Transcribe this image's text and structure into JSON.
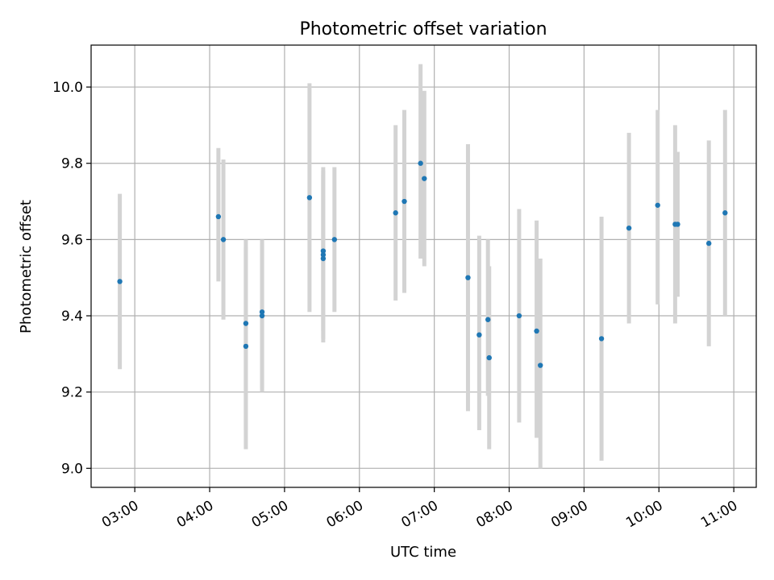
{
  "chart_data": {
    "type": "scatter",
    "title": "Photometric offset variation",
    "xlabel": "UTC time",
    "ylabel": "Photometric offset",
    "x_tick_labels": [
      "03:00",
      "04:00",
      "05:00",
      "06:00",
      "07:00",
      "08:00",
      "09:00",
      "10:00",
      "11:00"
    ],
    "y_tick_labels": [
      "9.0",
      "9.2",
      "9.4",
      "9.6",
      "9.8",
      "10.0"
    ],
    "xlim": [
      "02:25",
      "11:18"
    ],
    "ylim": [
      8.95,
      10.11
    ],
    "grid": true,
    "colors": {
      "points": "#1f77b4",
      "error_bars": "#d3d3d3",
      "grid": "#b0b0b0"
    },
    "series": [
      {
        "error_bars": "vertical",
        "points": [
          {
            "x": "02:48",
            "y": 9.49,
            "err_low": 9.26,
            "err_high": 9.72
          },
          {
            "x": "04:07",
            "y": 9.66,
            "err_low": 9.49,
            "err_high": 9.84
          },
          {
            "x": "04:11",
            "y": 9.6,
            "err_low": 9.39,
            "err_high": 9.81
          },
          {
            "x": "04:29",
            "y": 9.38,
            "err_low": 9.1,
            "err_high": 9.6
          },
          {
            "x": "04:29",
            "y": 9.32,
            "err_low": 9.05,
            "err_high": 9.58
          },
          {
            "x": "04:42",
            "y": 9.41,
            "err_low": 9.21,
            "err_high": 9.6
          },
          {
            "x": "04:42",
            "y": 9.4,
            "err_low": 9.2,
            "err_high": 9.59
          },
          {
            "x": "05:20",
            "y": 9.71,
            "err_low": 9.41,
            "err_high": 10.01
          },
          {
            "x": "05:31",
            "y": 9.57,
            "err_low": 9.36,
            "err_high": 9.79
          },
          {
            "x": "05:31",
            "y": 9.56,
            "err_low": 9.34,
            "err_high": 9.78
          },
          {
            "x": "05:31",
            "y": 9.55,
            "err_low": 9.33,
            "err_high": 9.77
          },
          {
            "x": "05:40",
            "y": 9.6,
            "err_low": 9.41,
            "err_high": 9.79
          },
          {
            "x": "06:29",
            "y": 9.67,
            "err_low": 9.44,
            "err_high": 9.9
          },
          {
            "x": "06:36",
            "y": 9.7,
            "err_low": 9.46,
            "err_high": 9.94
          },
          {
            "x": "06:49",
            "y": 9.8,
            "err_low": 9.55,
            "err_high": 10.06
          },
          {
            "x": "06:52",
            "y": 9.76,
            "err_low": 9.53,
            "err_high": 9.99
          },
          {
            "x": "07:27",
            "y": 9.5,
            "err_low": 9.15,
            "err_high": 9.85
          },
          {
            "x": "07:36",
            "y": 9.35,
            "err_low": 9.1,
            "err_high": 9.61
          },
          {
            "x": "07:43",
            "y": 9.39,
            "err_low": 9.19,
            "err_high": 9.6
          },
          {
            "x": "07:44",
            "y": 9.29,
            "err_low": 9.05,
            "err_high": 9.53
          },
          {
            "x": "08:08",
            "y": 9.4,
            "err_low": 9.12,
            "err_high": 9.68
          },
          {
            "x": "08:22",
            "y": 9.36,
            "err_low": 9.08,
            "err_high": 9.65
          },
          {
            "x": "08:25",
            "y": 9.27,
            "err_low": 9.0,
            "err_high": 9.55
          },
          {
            "x": "09:14",
            "y": 9.34,
            "err_low": 9.02,
            "err_high": 9.66
          },
          {
            "x": "09:36",
            "y": 9.63,
            "err_low": 9.38,
            "err_high": 9.88
          },
          {
            "x": "09:59",
            "y": 9.69,
            "err_low": 9.43,
            "err_high": 9.94
          },
          {
            "x": "10:13",
            "y": 9.64,
            "err_low": 9.38,
            "err_high": 9.9
          },
          {
            "x": "10:15",
            "y": 9.64,
            "err_low": 9.45,
            "err_high": 9.83
          },
          {
            "x": "10:40",
            "y": 9.59,
            "err_low": 9.32,
            "err_high": 9.86
          },
          {
            "x": "10:53",
            "y": 9.67,
            "err_low": 9.4,
            "err_high": 9.94
          }
        ]
      }
    ]
  }
}
